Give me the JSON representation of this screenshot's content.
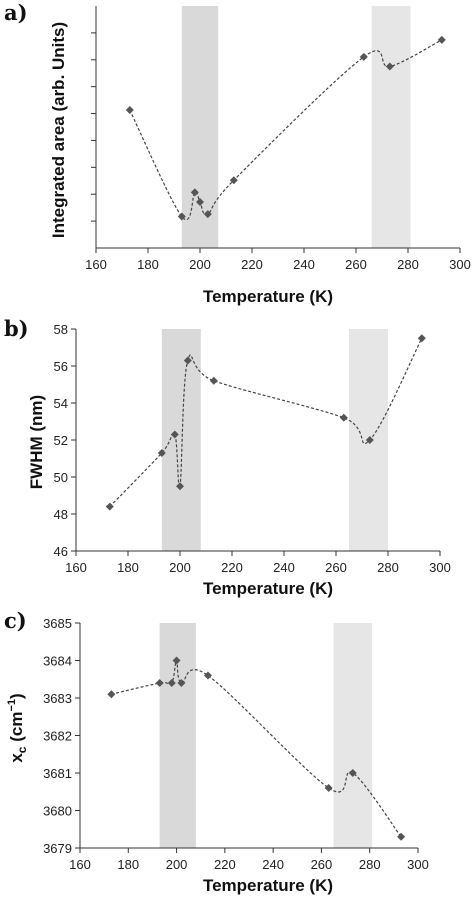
{
  "chart_data": [
    {
      "type": "scatter",
      "panel_label": "a)",
      "xlabel": "Temperature (K)",
      "ylabel": "Integrated area (arb. Units)",
      "xlim": [
        160,
        300
      ],
      "ylim": [
        0,
        100
      ],
      "x_ticks": [
        160,
        180,
        200,
        220,
        240,
        260,
        280,
        300
      ],
      "y_ticks": [],
      "show_y_tick_labels": false,
      "shaded_regions": [
        {
          "x": [
            193,
            207
          ],
          "color": "#d9d9d9"
        },
        {
          "x": [
            266,
            281
          ],
          "color": "#e6e6e6"
        }
      ],
      "series": [
        {
          "x": [
            173,
            193,
            198,
            200,
            203,
            213,
            263,
            273,
            293
          ],
          "y": [
            57,
            13,
            23,
            19,
            14,
            28,
            79,
            75,
            86
          ]
        }
      ],
      "marker_color": "#555555"
    },
    {
      "type": "scatter",
      "panel_label": "b)",
      "xlabel": "Temperature (K)",
      "ylabel": "FWHM (nm)",
      "xlim": [
        160,
        300
      ],
      "ylim": [
        46,
        58
      ],
      "x_ticks": [
        160,
        180,
        200,
        220,
        240,
        260,
        280,
        300
      ],
      "y_ticks": [
        46,
        48,
        50,
        52,
        54,
        56,
        58
      ],
      "show_y_tick_labels": true,
      "shaded_regions": [
        {
          "x": [
            193,
            208
          ],
          "color": "#d9d9d9"
        },
        {
          "x": [
            265,
            280
          ],
          "color": "#e6e6e6"
        }
      ],
      "series": [
        {
          "x": [
            173,
            193,
            198,
            200,
            203,
            213,
            263,
            273,
            293
          ],
          "y": [
            48.4,
            51.3,
            52.3,
            49.5,
            56.3,
            55.2,
            53.2,
            52.0,
            57.5
          ]
        }
      ],
      "marker_color": "#555555"
    },
    {
      "type": "scatter",
      "panel_label": "c)",
      "xlabel": "Temperature (K)",
      "ylabel": "x",
      "ylabel_subscript": "c",
      "ylabel_unit": " (cm",
      "ylabel_superscript": "−1",
      "ylabel_close": ")",
      "xlim": [
        160,
        300
      ],
      "ylim": [
        3679,
        3685
      ],
      "x_ticks": [
        160,
        180,
        200,
        220,
        240,
        260,
        280,
        300
      ],
      "y_ticks": [
        3679,
        3680,
        3681,
        3682,
        3683,
        3684,
        3685
      ],
      "show_y_tick_labels": true,
      "shaded_regions": [
        {
          "x": [
            193,
            208
          ],
          "color": "#d9d9d9"
        },
        {
          "x": [
            265,
            281
          ],
          "color": "#e6e6e6"
        }
      ],
      "series": [
        {
          "x": [
            173,
            193,
            198,
            200,
            202,
            213,
            263,
            273,
            293
          ],
          "y": [
            3683.1,
            3683.4,
            3683.4,
            3684.0,
            3683.4,
            3683.6,
            3680.6,
            3681.0,
            3679.3
          ]
        }
      ],
      "marker_color": "#555555"
    }
  ]
}
